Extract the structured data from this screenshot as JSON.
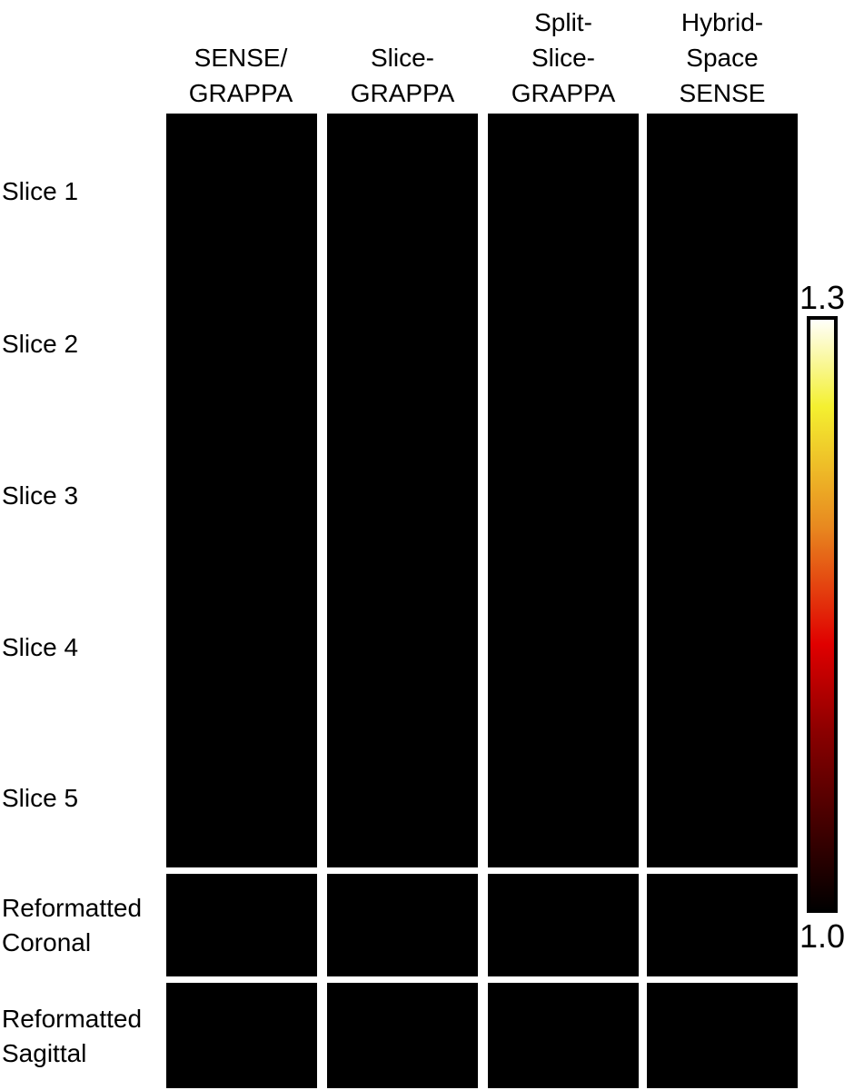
{
  "column_headers": [
    {
      "lines": [
        "SENSE/",
        "GRAPPA"
      ]
    },
    {
      "lines": [
        "Slice-",
        "GRAPPA"
      ]
    },
    {
      "lines": [
        "Split-",
        "Slice-",
        "GRAPPA"
      ]
    },
    {
      "lines": [
        "Hybrid-",
        "Space",
        "SENSE"
      ]
    }
  ],
  "row_labels": [
    {
      "lines": [
        "Slice 1"
      ]
    },
    {
      "lines": [
        "Slice 2"
      ]
    },
    {
      "lines": [
        "Slice 3"
      ]
    },
    {
      "lines": [
        "Slice 4"
      ]
    },
    {
      "lines": [
        "Slice 5"
      ]
    },
    {
      "lines": [
        "Reformatted",
        "Coronal"
      ]
    },
    {
      "lines": [
        "Reformatted",
        "Sagittal"
      ]
    }
  ],
  "colorbar": {
    "max": "1.3",
    "min": "1.0"
  }
}
